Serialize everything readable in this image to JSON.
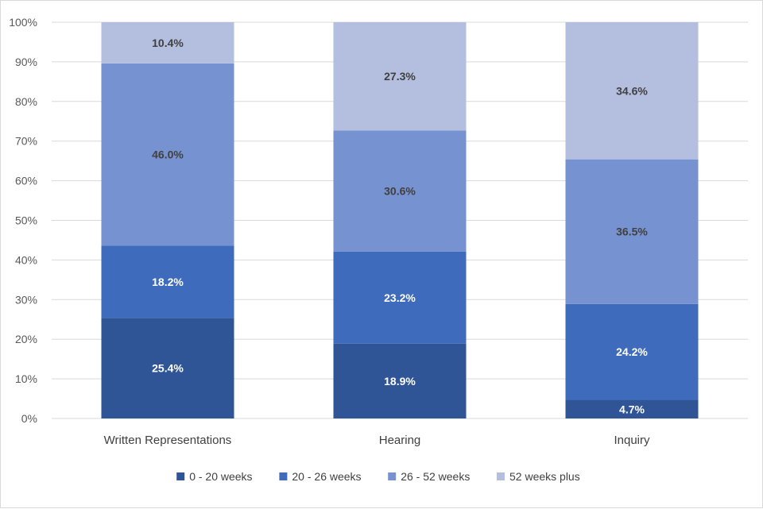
{
  "chart_data": {
    "type": "bar",
    "stacked": true,
    "normalized": true,
    "categories": [
      "Written Representations",
      "Hearing",
      "Inquiry"
    ],
    "series": [
      {
        "name": "0 - 20 weeks",
        "values": [
          25.4,
          18.9,
          4.7
        ],
        "color": "#2f5597",
        "label_color": "#ffffff"
      },
      {
        "name": "20 - 26 weeks",
        "values": [
          18.2,
          23.2,
          24.2
        ],
        "color": "#3f6bbd",
        "label_color": "#ffffff"
      },
      {
        "name": "26 - 52 weeks",
        "values": [
          46.0,
          30.6,
          36.5
        ],
        "color": "#7792d0",
        "label_color": "#404040"
      },
      {
        "name": "52 weeks plus",
        "values": [
          10.4,
          27.3,
          34.6
        ],
        "color": "#b4bfe0",
        "label_color": "#404040"
      }
    ],
    "data_labels": [
      [
        "25.4%",
        "18.9%",
        "4.7%"
      ],
      [
        "18.2%",
        "23.2%",
        "24.2%"
      ],
      [
        "46.0%",
        "30.6%",
        "36.5%"
      ],
      [
        "10.4%",
        "27.3%",
        "34.6%"
      ]
    ],
    "y_ticks": [
      "0%",
      "10%",
      "20%",
      "30%",
      "40%",
      "50%",
      "60%",
      "70%",
      "80%",
      "90%",
      "100%"
    ],
    "ylim": [
      0,
      100
    ],
    "grid": true,
    "legend_position": "bottom",
    "title": "",
    "xlabel": "",
    "ylabel": ""
  }
}
